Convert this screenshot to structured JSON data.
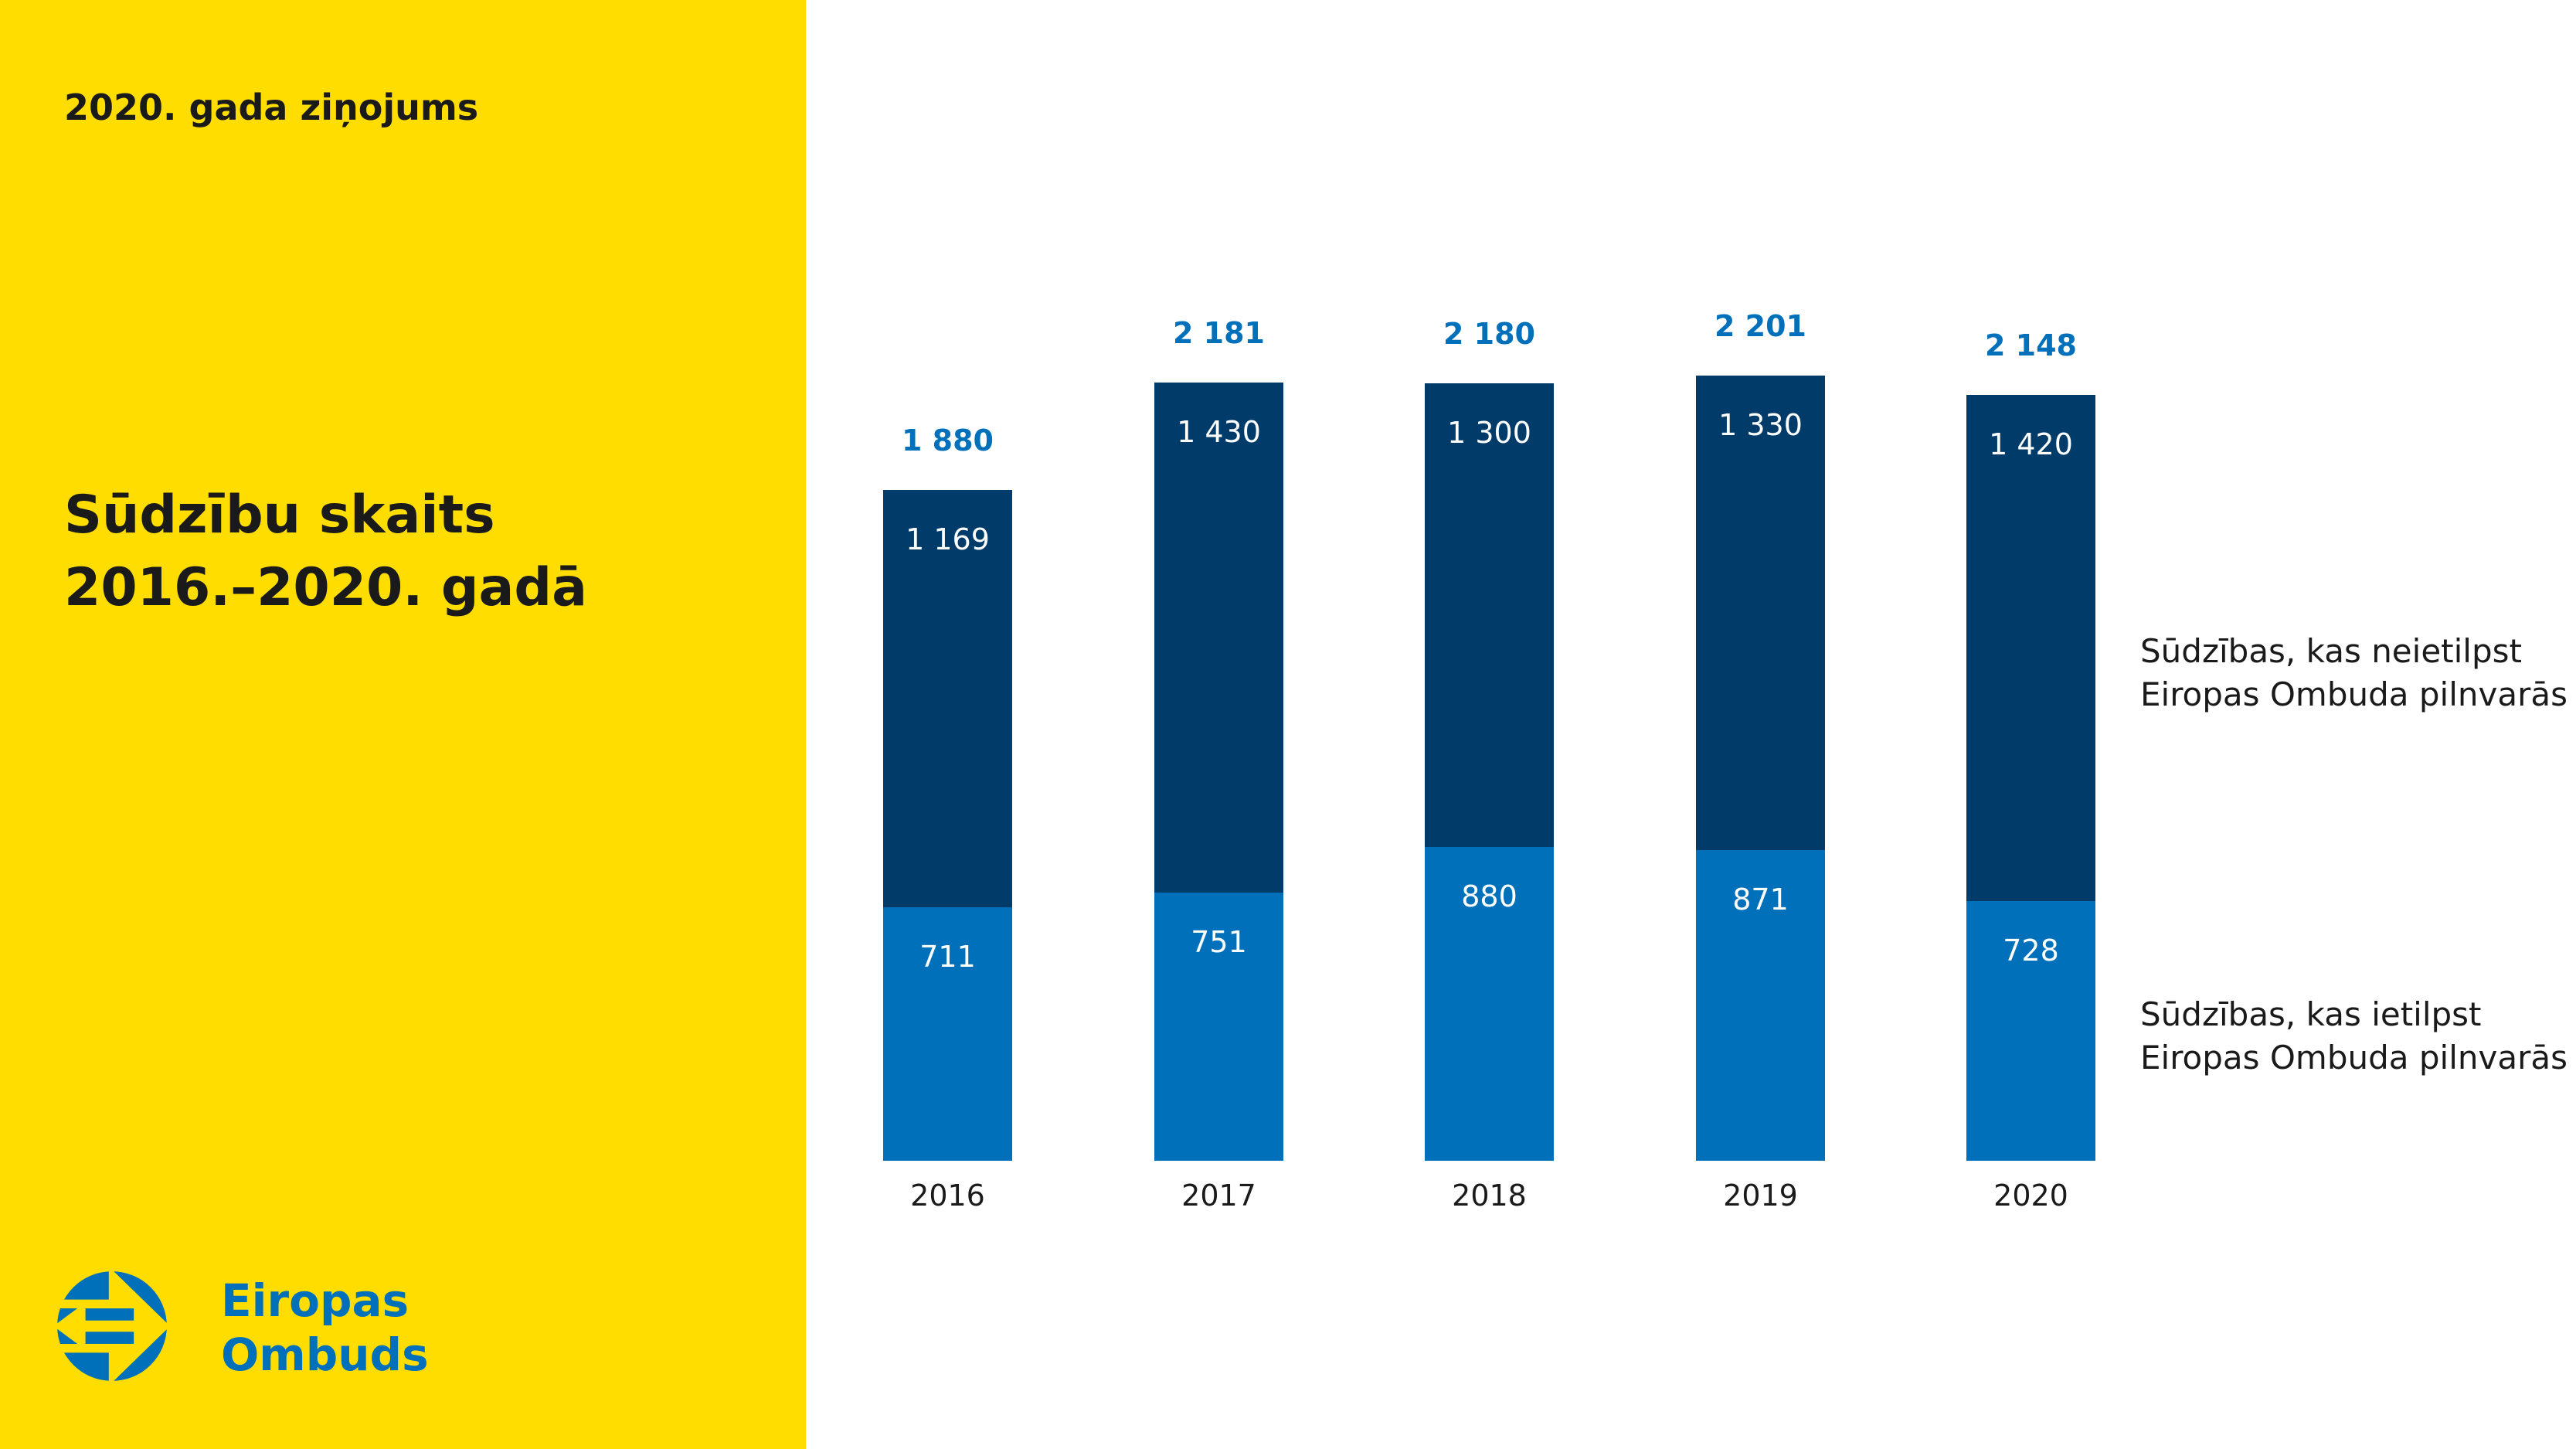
{
  "header": {
    "report": "2020. gada ziņojums",
    "title_line1": "Sūdzību skaits",
    "title_line2": "2016.–2020. gadā"
  },
  "logo": {
    "line1": "Eiropas",
    "line2": "Ombuds"
  },
  "colors": {
    "panel": "#FFDD00",
    "outside": "#003B6A",
    "inside": "#0070BA"
  },
  "chart_data": {
    "type": "bar",
    "stacked": true,
    "categories": [
      "2016",
      "2017",
      "2018",
      "2019",
      "2020"
    ],
    "series": [
      {
        "name": "Sūdzības, kas ietilpst Eiropas Ombuda pilnvarās",
        "values": [
          711,
          751,
          880,
          871,
          728
        ],
        "labels": [
          "711",
          "751",
          "880",
          "871",
          "728"
        ]
      },
      {
        "name": "Sūdzības, kas neietilpst Eiropas Ombuda pilnvarās",
        "values": [
          1169,
          1430,
          1300,
          1330,
          1420
        ],
        "labels": [
          "1 169",
          "1 430",
          "1 300",
          "1 330",
          "1 420"
        ]
      }
    ],
    "totals": [
      1880,
      2181,
      2180,
      2201,
      2148
    ],
    "total_labels": [
      "1 880",
      "2 181",
      "2 180",
      "2 201",
      "2 148"
    ],
    "title": "Sūdzību skaits 2016.–2020. gadā",
    "xlabel": "",
    "ylabel": "",
    "ylim": [
      0,
      2201
    ],
    "grid": false,
    "legend": "right"
  }
}
